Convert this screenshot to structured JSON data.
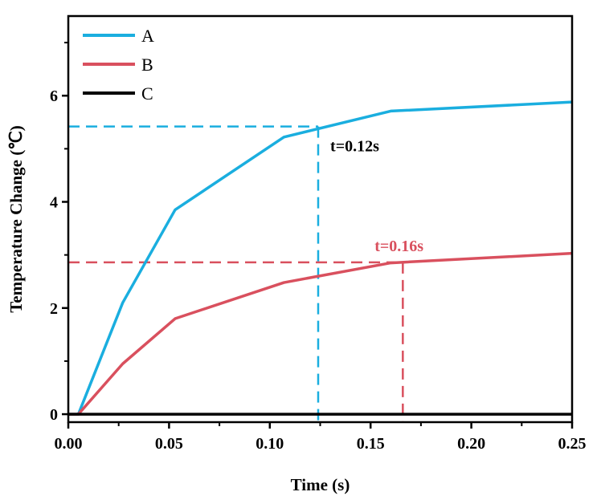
{
  "chart_data": {
    "type": "line",
    "title": "",
    "xlabel": "Time (s)",
    "ylabel": "Temperature Change (℃)",
    "xlim": [
      0,
      0.25
    ],
    "ylim": [
      -0.15,
      7.5
    ],
    "x_ticks": [
      0,
      0.05,
      0.1,
      0.15,
      0.2,
      0.25
    ],
    "x_tick_labels": [
      "0.00",
      "0.05",
      "0.10",
      "0.15",
      "0.20",
      "0.25"
    ],
    "y_ticks": [
      0,
      2,
      4,
      6
    ],
    "y_tick_labels": [
      "0",
      "2",
      "4",
      "6"
    ],
    "grid": false,
    "legend_position": "top-left",
    "series": [
      {
        "name": "A",
        "color": "#1aaedf",
        "x": [
          0.0,
          0.005,
          0.027,
          0.053,
          0.107,
          0.16,
          0.25
        ],
        "y": [
          0.0,
          0.0,
          2.1,
          3.85,
          5.22,
          5.71,
          5.88
        ]
      },
      {
        "name": "B",
        "color": "#d9505e",
        "x": [
          0.0,
          0.005,
          0.027,
          0.053,
          0.107,
          0.16,
          0.25
        ],
        "y": [
          0.0,
          0.0,
          0.95,
          1.8,
          2.48,
          2.85,
          3.03
        ]
      },
      {
        "name": "C",
        "color": "#000000",
        "x": [
          0.0,
          0.25
        ],
        "y": [
          0.0,
          0.0
        ]
      }
    ],
    "annotations": [
      {
        "text": "t=0.12s",
        "color": "#000000",
        "line_color": "#1aaedf",
        "x": 0.124,
        "y": 5.42,
        "text_x": 0.13,
        "text_y": 4.95
      },
      {
        "text": "t=0.16s",
        "color": "#d9505e",
        "line_color": "#d9505e",
        "x": 0.166,
        "y": 2.86,
        "text_x": 0.152,
        "text_y": 3.07
      }
    ]
  }
}
